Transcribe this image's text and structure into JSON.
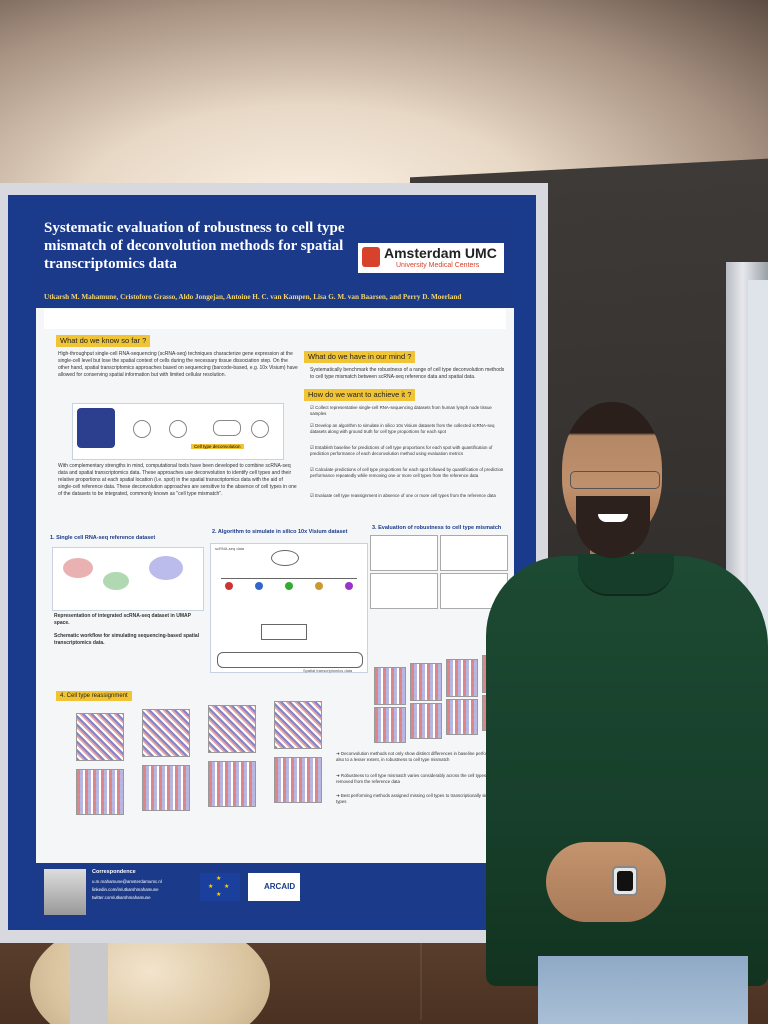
{
  "poster": {
    "title": "Systematic evaluation of robustness to cell type mismatch of deconvolution methods for spatial transcriptomics data",
    "logo": {
      "name": "Amsterdam UMC",
      "subtitle": "University Medical Centers"
    },
    "authors": "Utkarsh M. Mahamune, Cristoforo Grasso, Aldo Jongejan, Antoine H. C. van Kampen, Lisa G. M. van Baarsen, and Perry D. Moerland",
    "sections": {
      "know_so_far": {
        "heading": "What do we know so far ?",
        "text": "High-throughput single-cell RNA-sequencing (scRNA-seq) techniques characterize gene expression at the single-cell level but lose the spatial context of cells during the necessary tissue dissociation step. On the other hand, spatial transcriptomics approaches based on sequencing (barcode-based, e.g. 10x Visium) have allowed for conserving spatial information but with limited cellular resolution.",
        "text2": "With complementary strengths in mind, computational tools have been developed to combine scRNA-seq data and spatial transcriptomics data. These approaches use deconvolution to identify cell types and their relative proportions at each spatial location (i.e. spot) in the spatial transcriptomics data with the aid of single-cell reference data. These deconvolution approaches are sensitive to the absence of cell types in one of the datasets to be integrated, commonly known as \"cell type mismatch\".",
        "fig_label": "Cell type deconvolution"
      },
      "in_mind": {
        "heading": "What do we have in our mind ?",
        "text": "Systematically benchmark the robustness of a range of cell type deconvolution methods to cell type mismatch between scRNA-seq reference data and spatial data."
      },
      "achieve": {
        "heading": "How do we want to achieve it ?",
        "items": [
          "Collect representative single-cell RNA-sequencing datasets from human lymph node tissue samples",
          "Develop an algorithm to simulate in silico 10x Visium datasets from the collected scRNA-seq datasets along with ground truth for cell type proportions for each spot",
          "Establish baseline for predictions of cell type proportions for each spot with quantification of prediction performance of each deconvolution method using evaluation metrics",
          "Calculate predictions of cell type proportions for each spot followed by quantification of prediction performance repeatedly while removing one or more cell types from the reference data",
          "Evaluate cell type reassignment in absence of one or more cell types from the reference data"
        ]
      },
      "panels": [
        {
          "title": "1. Single cell RNA-seq reference dataset"
        },
        {
          "title": "2. Algorithm to simulate in silico 10x Visium dataset"
        },
        {
          "title": "3. Evaluation of robustness to cell type mismatch"
        },
        {
          "title": "4. Cell type reassignment"
        }
      ],
      "fig1_caption": "Representation of integrated scRNA-seq dataset in UMAP space.",
      "fig2_caption": "Schematic workflow for simulating sequencing-based spatial transcriptomics data.",
      "fig2_node_top": "scRNA-seq data",
      "fig2_node_bottom": "Spatial transcriptomics data",
      "conclusions": [
        "Deconvolution methods not only show distinct differences in baseline performance but also to a lesser extent, in robustness to cell type mismatch",
        "Robustness to cell type mismatch varies considerably across the cell types that are removed from the reference data",
        "Best performing methods assigned missing cell types to transcriptionally similar cell types"
      ],
      "correspondence": {
        "heading": "Correspondence",
        "lines": [
          "u.m.mahamune@amsterdamumc.nl",
          "linkedin.com/in/utkarshmahamune",
          "twitter.com/utkarshmahamune"
        ]
      },
      "footer_logo": "ARCAID"
    }
  },
  "colors": {
    "poster_blue": "#1c3a8a",
    "heading_yellow": "#f1c435",
    "author_yellow": "#f5d56a",
    "shirt_green": "#1d4a33"
  }
}
